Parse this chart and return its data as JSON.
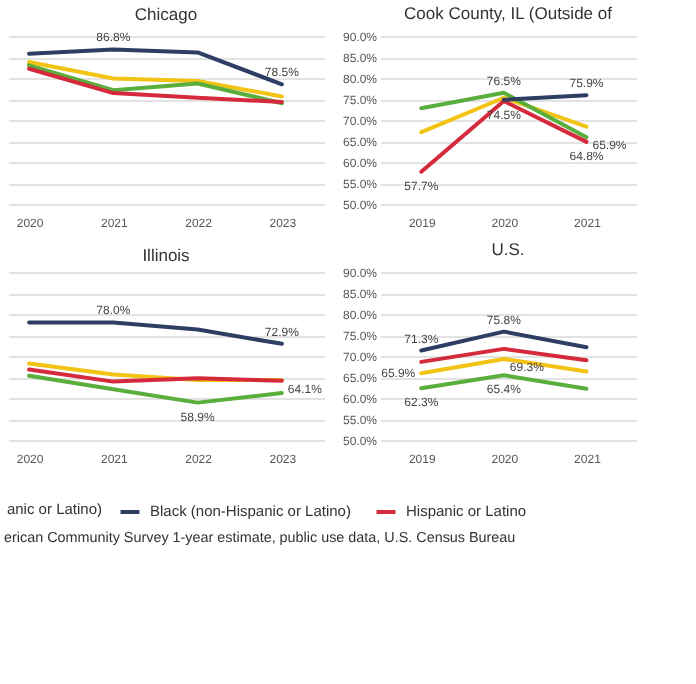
{
  "chart_data": [
    {
      "type": "line",
      "title": "Chicago",
      "x": [
        2020,
        2021,
        2022,
        2023
      ],
      "xlim": [
        2019.75,
        2023.5
      ],
      "xticks": [
        2020,
        2021,
        2022,
        2023
      ],
      "ylim": [
        50,
        90
      ],
      "yticks": [
        {
          "value": 50,
          "label": null
        },
        {
          "value": 55,
          "label": null
        },
        {
          "value": 60,
          "label": null
        },
        {
          "value": 65,
          "label": null
        },
        {
          "value": 70,
          "label": null
        },
        {
          "value": 75,
          "label": null
        },
        {
          "value": 80,
          "label": null
        },
        {
          "value": 85,
          "label": null
        },
        {
          "value": 90,
          "label": null
        }
      ],
      "grid": "y",
      "tick_labels": "x",
      "legend": "bottom",
      "series": [
        {
          "color": "#f2c313",
          "values": [
            83.8,
            79.9,
            79.3,
            75.6
          ]
        },
        {
          "color": "#5aae3c",
          "values": [
            83.0,
            77.1,
            78.7,
            74.0
          ]
        },
        {
          "name": "Hispanic or Latino",
          "color": "#d42a3c",
          "values": [
            82.2,
            76.4,
            75.3,
            74.3
          ]
        },
        {
          "name": "Black (non-Hispanic or Latino)",
          "color": "#2d3d63",
          "values": [
            85.8,
            86.8,
            86.1,
            78.5
          ],
          "value_labels": [
            null,
            "86.8%",
            null,
            "78.5%"
          ]
        }
      ]
    },
    {
      "type": "line",
      "title": "Cook County, IL (Outside of",
      "x": [
        2019,
        2020,
        2021
      ],
      "xlim": [
        2018.5,
        2021.6
      ],
      "xticks": [
        2019,
        2020,
        2021
      ],
      "ylim": [
        50,
        90
      ],
      "yticks": [
        {
          "value": 50,
          "label": "50.0%"
        },
        {
          "value": 55,
          "label": "55.0%"
        },
        {
          "value": 60,
          "label": "60.0%"
        },
        {
          "value": 65,
          "label": "65.0%"
        },
        {
          "value": 70,
          "label": "70.0%"
        },
        {
          "value": 75,
          "label": "75.0%"
        },
        {
          "value": 80,
          "label": "80.0%"
        },
        {
          "value": 85,
          "label": "85.0%"
        },
        {
          "value": 90,
          "label": "90.0%"
        }
      ],
      "grid": "y",
      "legend": "bottom",
      "series": [
        {
          "color": "#f2c313",
          "values": [
            67.1,
            75.3,
            68.4
          ]
        },
        {
          "color": "#5aae3c",
          "values": [
            72.8,
            76.5,
            65.9
          ],
          "value_labels": [
            null,
            "76.5%",
            "65.9%"
          ]
        },
        {
          "name": "Hispanic or Latino",
          "color": "#d42a3c",
          "values": [
            57.7,
            74.5,
            64.8
          ],
          "value_labels": [
            "57.7%",
            "74.5%",
            "64.8%"
          ]
        },
        {
          "name": "Black (non-Hispanic or Latino)",
          "color": "#2d3d63",
          "values": [
            null,
            74.8,
            75.9
          ],
          "value_labels": [
            null,
            null,
            "75.9%"
          ]
        }
      ]
    },
    {
      "type": "line",
      "title": "Illinois",
      "x": [
        2020,
        2021,
        2022,
        2023
      ],
      "xlim": [
        2019.75,
        2023.5
      ],
      "xticks": [
        2020,
        2021,
        2022,
        2023
      ],
      "ylim": [
        50,
        90
      ],
      "yticks": [
        {
          "value": 50,
          "label": null
        },
        {
          "value": 55,
          "label": null
        },
        {
          "value": 60,
          "label": null
        },
        {
          "value": 65,
          "label": null
        },
        {
          "value": 70,
          "label": null
        },
        {
          "value": 75,
          "label": null
        },
        {
          "value": 80,
          "label": null
        },
        {
          "value": 85,
          "label": null
        },
        {
          "value": 90,
          "label": null
        }
      ],
      "grid": "y",
      "tick_labels": "x",
      "legend": "bottom",
      "series": [
        {
          "color": "#f2c313",
          "values": [
            68.2,
            65.6,
            64.3,
            64.3
          ]
        },
        {
          "color": "#5aae3c",
          "values": [
            65.3,
            62.1,
            58.9,
            61.2
          ],
          "value_labels": [
            null,
            null,
            "58.9%",
            null
          ]
        },
        {
          "name": "Hispanic or Latino",
          "color": "#d42a3c",
          "values": [
            66.8,
            63.9,
            64.7,
            64.1
          ],
          "value_labels": [
            null,
            null,
            null,
            "64.1%"
          ]
        },
        {
          "name": "Black (non-Hispanic or Latino)",
          "color": "#2d3d63",
          "values": [
            78.0,
            78.0,
            76.3,
            72.9
          ],
          "value_labels": [
            null,
            "78.0%",
            null,
            "72.9%"
          ]
        }
      ]
    },
    {
      "type": "line",
      "title": "U.S.",
      "x": [
        2019,
        2020,
        2021
      ],
      "xlim": [
        2018.5,
        2021.6
      ],
      "xticks": [
        2019,
        2020,
        2021
      ],
      "ylim": [
        50,
        90
      ],
      "yticks": [
        {
          "value": 50,
          "label": "50.0%"
        },
        {
          "value": 55,
          "label": "55.0%"
        },
        {
          "value": 60,
          "label": "60.0%"
        },
        {
          "value": 65,
          "label": "65.0%"
        },
        {
          "value": 70,
          "label": "70.0%"
        },
        {
          "value": 75,
          "label": "75.0%"
        },
        {
          "value": 80,
          "label": "80.0%"
        },
        {
          "value": 85,
          "label": "85.0%"
        },
        {
          "value": 90,
          "label": "90.0%"
        }
      ],
      "grid": "y",
      "legend": "bottom",
      "annotations": [
        "anic or Latino)",
        "erican Community Survey 1-year estimate, public use data, U.S. Census Bureau"
      ],
      "series": [
        {
          "color": "#f2c313",
          "values": [
            65.9,
            69.3,
            66.3
          ],
          "value_labels": [
            "65.9%",
            "69.3%",
            null
          ]
        },
        {
          "color": "#5aae3c",
          "values": [
            62.3,
            65.4,
            62.2
          ],
          "value_labels": [
            "62.3%",
            "65.4%",
            null
          ]
        },
        {
          "name": "Hispanic or Latino",
          "color": "#d42a3c",
          "values": [
            68.6,
            71.7,
            69.0
          ]
        },
        {
          "name": "Black (non-Hispanic or Latino)",
          "color": "#2d3d63",
          "values": [
            71.3,
            75.8,
            72.1
          ],
          "value_labels": [
            "71.3%",
            "75.8%",
            null
          ]
        }
      ]
    }
  ]
}
